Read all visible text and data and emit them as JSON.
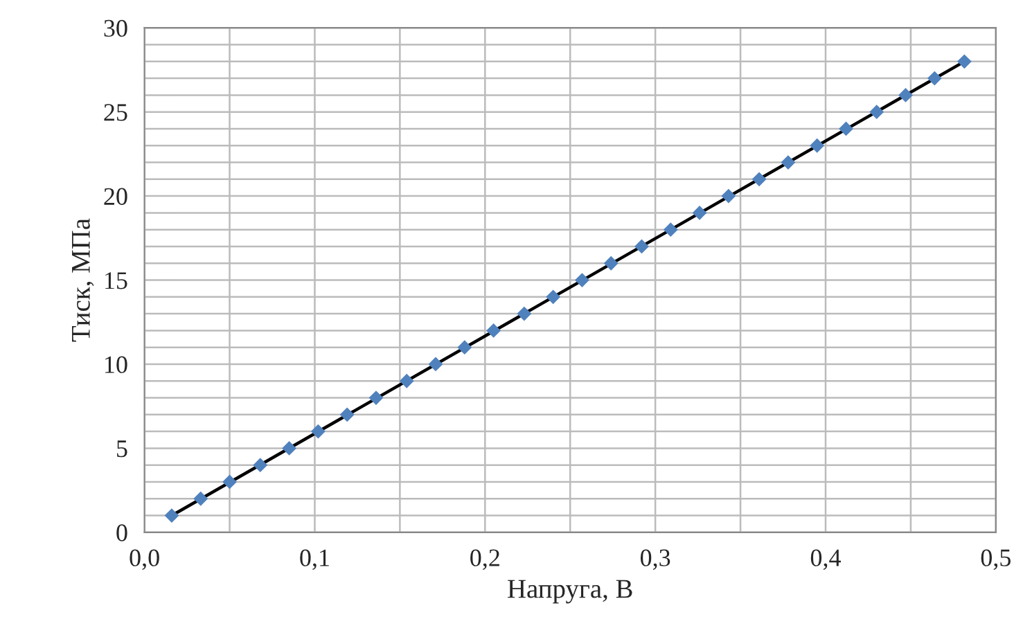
{
  "chart_data": {
    "type": "scatter",
    "xlabel": "Напруга, В",
    "ylabel": "Тиск, МПа",
    "series": [
      {
        "color": "#4f81bd",
        "marker": "diamond",
        "x": [
          0.016,
          0.033,
          0.05,
          0.068,
          0.085,
          0.102,
          0.119,
          0.136,
          0.154,
          0.171,
          0.188,
          0.205,
          0.223,
          0.24,
          0.257,
          0.274,
          0.292,
          0.309,
          0.326,
          0.343,
          0.361,
          0.378,
          0.395,
          0.412,
          0.43,
          0.447,
          0.464,
          0.4815
        ],
        "values": [
          1,
          2,
          3,
          4,
          5,
          6,
          7,
          8,
          9,
          10,
          11,
          12,
          13,
          14,
          15,
          16,
          17,
          18,
          19,
          20,
          21,
          22,
          23,
          24,
          25,
          26,
          27,
          28
        ]
      },
      {
        "type": "line",
        "color": "#000000",
        "marker": "none",
        "x": [
          0.016,
          0.4815
        ],
        "values": [
          1,
          28
        ]
      }
    ],
    "xlim": [
      0,
      0.5
    ],
    "ylim": [
      0,
      30
    ],
    "xticks": [
      {
        "value": 0,
        "label": "0,0"
      },
      {
        "value": 0.05,
        "label": null
      },
      {
        "value": 0.1,
        "label": "0,1"
      },
      {
        "value": 0.15,
        "label": null
      },
      {
        "value": 0.2,
        "label": "0,2"
      },
      {
        "value": 0.25,
        "label": null
      },
      {
        "value": 0.3,
        "label": "0,3"
      },
      {
        "value": 0.35,
        "label": null
      },
      {
        "value": 0.4,
        "label": "0,4"
      },
      {
        "value": 0.45,
        "label": null
      },
      {
        "value": 0.5,
        "label": "0,5"
      }
    ],
    "yticks": [
      0,
      {
        "value": 1,
        "label": null
      },
      {
        "value": 2,
        "label": null
      },
      {
        "value": 3,
        "label": null
      },
      {
        "value": 4,
        "label": null
      },
      5,
      {
        "value": 6,
        "label": null
      },
      {
        "value": 7,
        "label": null
      },
      {
        "value": 8,
        "label": null
      },
      {
        "value": 9,
        "label": null
      },
      10,
      {
        "value": 11,
        "label": null
      },
      {
        "value": 12,
        "label": null
      },
      {
        "value": 13,
        "label": null
      },
      {
        "value": 14,
        "label": null
      },
      15,
      {
        "value": 16,
        "label": null
      },
      {
        "value": 17,
        "label": null
      },
      {
        "value": 18,
        "label": null
      },
      {
        "value": 19,
        "label": null
      },
      20,
      {
        "value": 21,
        "label": null
      },
      {
        "value": 22,
        "label": null
      },
      {
        "value": 23,
        "label": null
      },
      {
        "value": 24,
        "label": null
      },
      25,
      {
        "value": 26,
        "label": null
      },
      {
        "value": 27,
        "label": null
      },
      {
        "value": 28,
        "label": null
      },
      {
        "value": 29,
        "label": null
      },
      30
    ],
    "grid": true
  }
}
